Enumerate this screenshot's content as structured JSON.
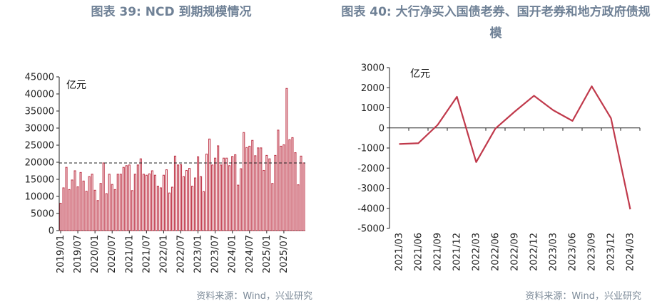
{
  "left_panel": {
    "title": "图表 39: NCD 到期规模情况",
    "source": "资料来源：Wind，兴业研究"
  },
  "right_panel": {
    "title": "图表 40: 大行净买入国债老券、国开老券和地方政府债规模",
    "source": "资料来源：Wind，兴业研究"
  },
  "colors": {
    "series": "#c0394b",
    "title": "#6f8196",
    "source": "#7d8b99"
  },
  "chart_data": [
    {
      "type": "bar",
      "unit_label": "亿元",
      "ylim": [
        0,
        45000
      ],
      "yticks": [
        0,
        5000,
        10000,
        15000,
        20000,
        25000,
        30000,
        35000,
        40000,
        45000
      ],
      "reference_line": 19800,
      "xtick_labels": [
        "2019/01",
        "2019/07",
        "2020/01",
        "2020/07",
        "2021/01",
        "2021/07",
        "2022/01",
        "2022/07",
        "2023/01",
        "2023/07",
        "2024/01",
        "2024/07",
        "2025/01",
        "2025/07"
      ],
      "values": [
        8000,
        12500,
        18500,
        12000,
        14800,
        17500,
        12800,
        17000,
        14500,
        11500,
        15800,
        16500,
        11800,
        8800,
        13800,
        19800,
        10800,
        16500,
        13500,
        12000,
        16500,
        16500,
        18500,
        19000,
        19200,
        11700,
        16500,
        19200,
        21000,
        16500,
        16200,
        16600,
        17500,
        16200,
        13000,
        12500,
        16200,
        17800,
        11000,
        12700,
        21800,
        19200,
        19300,
        15800,
        17600,
        18200,
        13000,
        15400,
        21600,
        15800,
        11400,
        22400,
        26800,
        19200,
        21200,
        24800,
        19200,
        21200,
        21200,
        19000,
        21700,
        22200,
        13300,
        18100,
        28700,
        24300,
        24700,
        26400,
        21900,
        24200,
        24200,
        17600,
        22000,
        21000,
        13800,
        22000,
        29400,
        24700,
        25100,
        41600,
        26600,
        27200,
        22800,
        13400,
        21800,
        19800
      ],
      "grid": false
    },
    {
      "type": "line",
      "unit_label": "亿元",
      "ylim": [
        -5000,
        3000
      ],
      "yticks": [
        -5000,
        -4000,
        -3000,
        -2000,
        -1000,
        0,
        1000,
        2000,
        3000
      ],
      "categories": [
        "2021/03",
        "2021/06",
        "2021/09",
        "2021/12",
        "2022/03",
        "2022/06",
        "2022/09",
        "2022/12",
        "2023/03",
        "2023/06",
        "2023/09",
        "2023/12",
        "2024/03"
      ],
      "values": [
        -800,
        -760,
        150,
        1550,
        -1700,
        -30,
        810,
        1600,
        880,
        350,
        2070,
        480,
        -4050
      ],
      "grid": false
    }
  ]
}
